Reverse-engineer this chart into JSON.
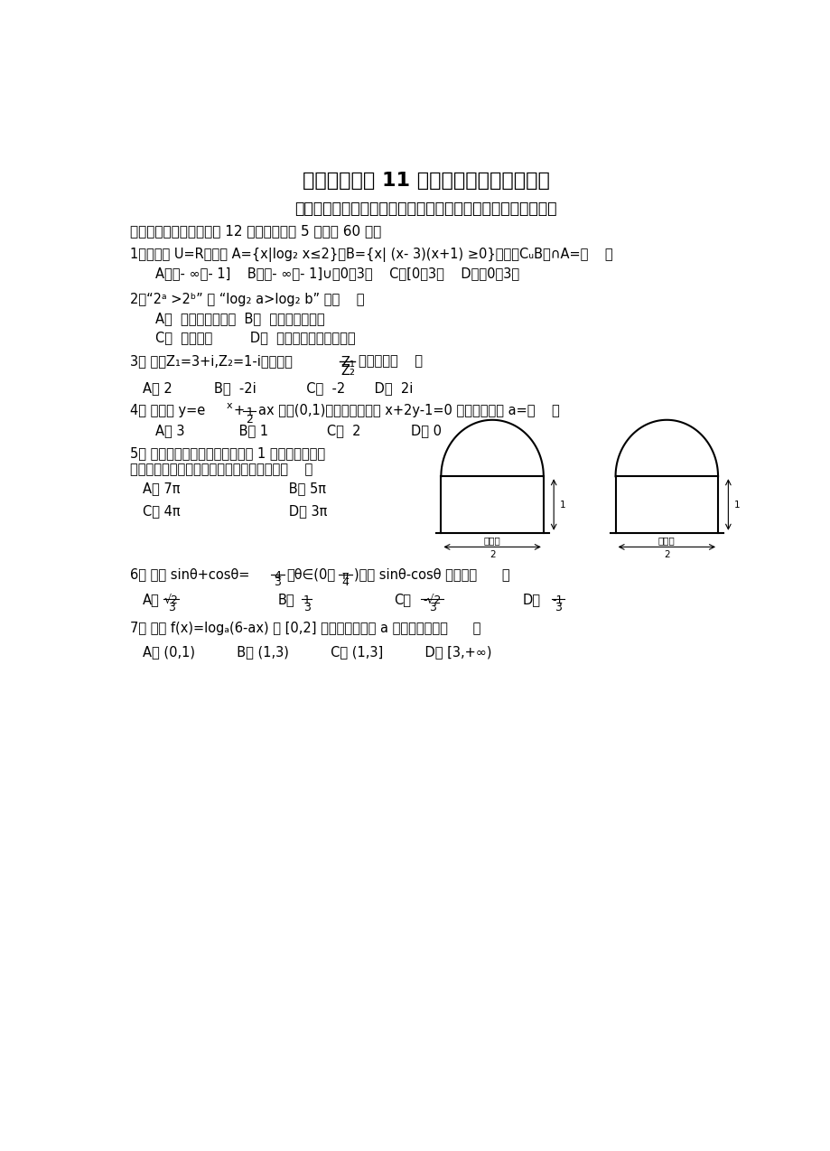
{
  "bg_color": "#ffffff",
  "title": "天全中学高三 11 月月考数学试题（理科）",
  "notice": "注意：请同学们将试题的答案必须写在答题卷上，否则不给分！",
  "section1": "一、选择题：（本大题共 12 小题，每小题 5 分，共 60 分）"
}
